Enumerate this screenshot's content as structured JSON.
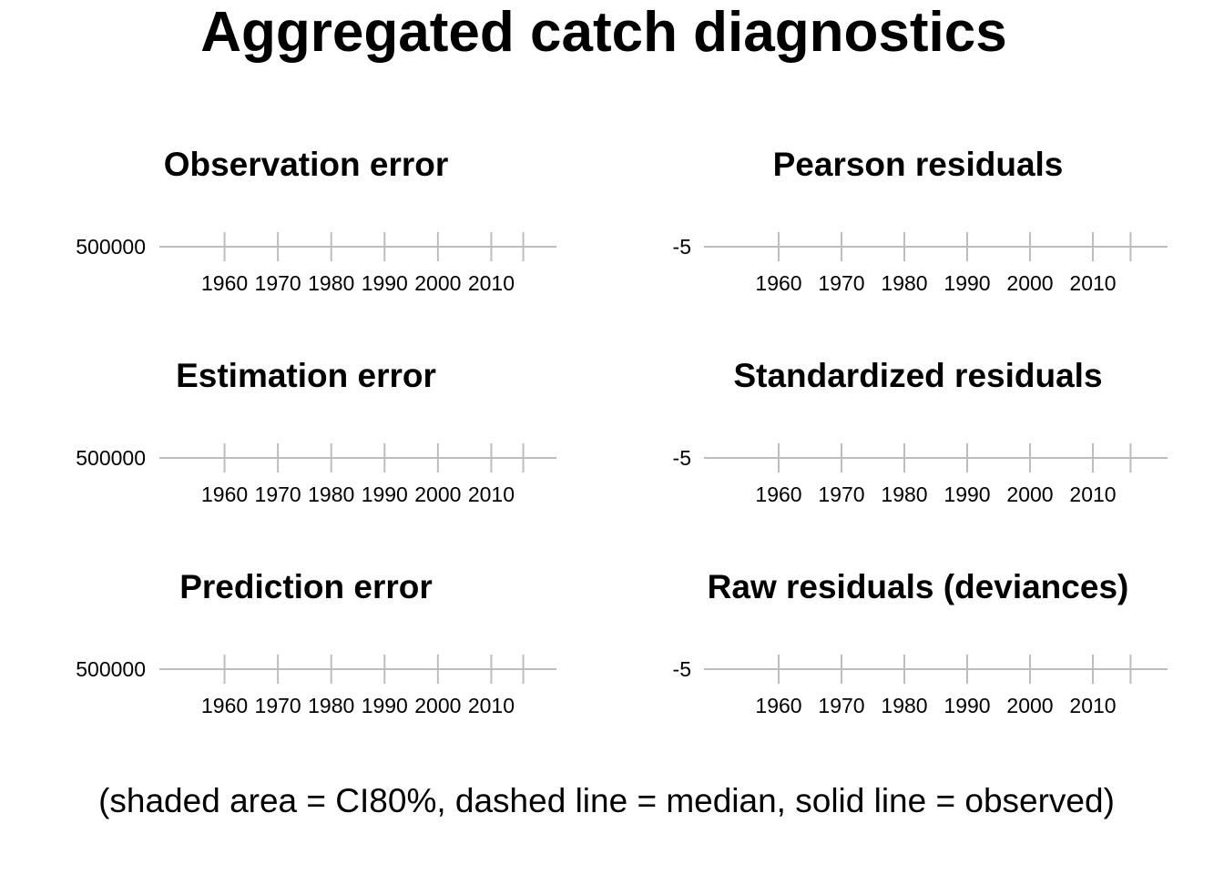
{
  "title": "Aggregated catch diagnostics",
  "caption": "(shaded area = CI80%, dashed line = median, solid line = observed)",
  "colors": {
    "axis": "#bdbdbd",
    "text": "#000000",
    "background": "#ffffff"
  },
  "chart_data": [
    {
      "type": "line",
      "title": "Observation error",
      "xlabel": "",
      "ylabel": "",
      "x_ticks": [
        1960,
        1970,
        1980,
        1990,
        2000,
        2010
      ],
      "y_ticks": [
        500000
      ],
      "xlim": [
        1950,
        2020
      ],
      "series": [],
      "grid": false
    },
    {
      "type": "line",
      "title": "Pearson residuals",
      "xlabel": "",
      "ylabel": "",
      "x_ticks": [
        1960,
        1970,
        1980,
        1990,
        2000,
        2010
      ],
      "y_ticks": [
        -5
      ],
      "xlim": [
        1950,
        2020
      ],
      "series": [],
      "grid": false
    },
    {
      "type": "line",
      "title": "Estimation error",
      "xlabel": "",
      "ylabel": "",
      "x_ticks": [
        1960,
        1970,
        1980,
        1990,
        2000,
        2010
      ],
      "y_ticks": [
        500000
      ],
      "xlim": [
        1950,
        2020
      ],
      "series": [],
      "grid": false
    },
    {
      "type": "line",
      "title": "Standardized residuals",
      "xlabel": "",
      "ylabel": "",
      "x_ticks": [
        1960,
        1970,
        1980,
        1990,
        2000,
        2010
      ],
      "y_ticks": [
        -5
      ],
      "xlim": [
        1950,
        2020
      ],
      "series": [],
      "grid": false
    },
    {
      "type": "line",
      "title": "Prediction error",
      "xlabel": "",
      "ylabel": "",
      "x_ticks": [
        1960,
        1970,
        1980,
        1990,
        2000,
        2010
      ],
      "y_ticks": [
        500000
      ],
      "xlim": [
        1950,
        2020
      ],
      "series": [],
      "grid": false
    },
    {
      "type": "line",
      "title": "Raw residuals (deviances)",
      "xlabel": "",
      "ylabel": "",
      "x_ticks": [
        1960,
        1970,
        1980,
        1990,
        2000,
        2010
      ],
      "y_ticks": [
        -5
      ],
      "xlim": [
        1950,
        2020
      ],
      "series": [],
      "grid": false
    }
  ]
}
